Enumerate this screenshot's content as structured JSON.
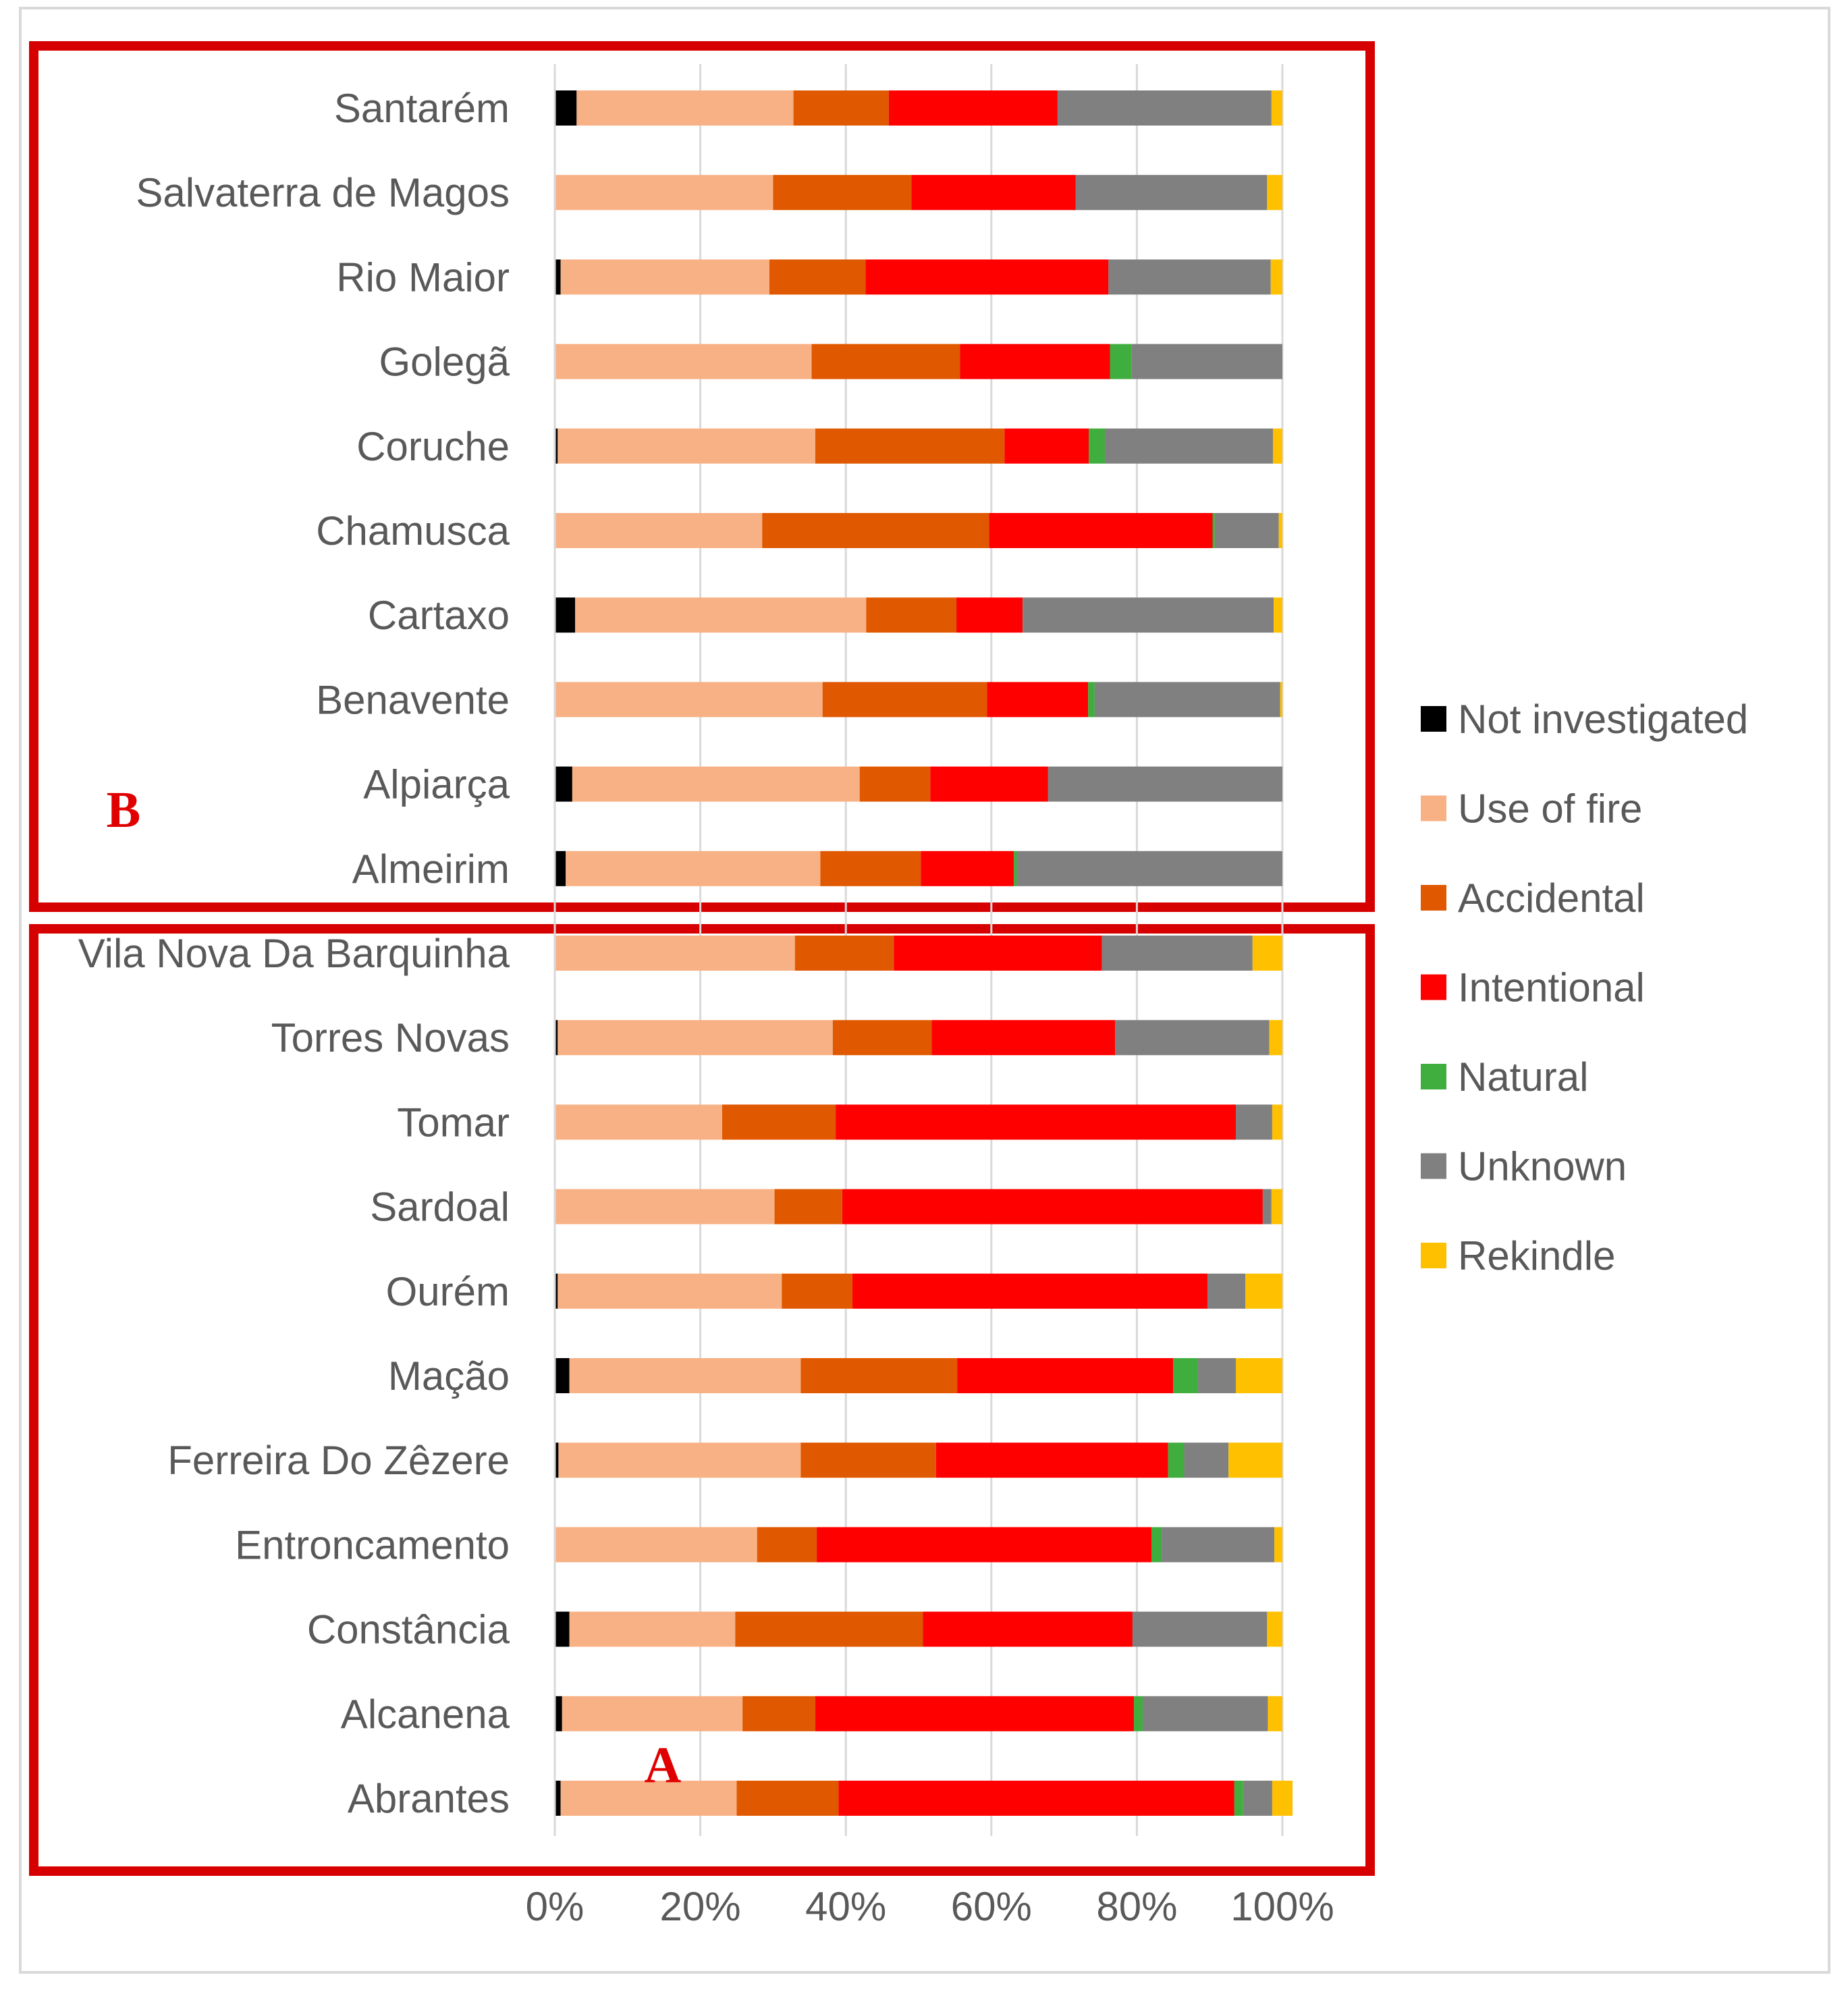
{
  "chart_data": {
    "type": "bar",
    "orientation": "horizontal",
    "stacked": "percent",
    "categories": [
      "Santarém",
      "Salvaterra de Magos",
      "Rio Maior",
      "Golegã",
      "Coruche",
      "Chamusca",
      "Cartaxo",
      "Benavente",
      "Alpiarça",
      "Almeirim",
      "Vila Nova Da Barquinha",
      "Torres Novas",
      "Tomar",
      "Sardoal",
      "Ourém",
      "Mação",
      "Ferreira Do Zêzere",
      "Entroncamento",
      "Constância",
      "Alcanena",
      "Abrantes"
    ],
    "series": [
      {
        "name": "Not investigated",
        "color": "#000000",
        "values": [
          3.0,
          0.0,
          0.8,
          0.0,
          0.4,
          0.0,
          2.8,
          0.0,
          2.4,
          1.5,
          0.0,
          0.4,
          0.0,
          0.0,
          0.4,
          2.0,
          0.5,
          0.0,
          2.0,
          1.0,
          0.8
        ]
      },
      {
        "name": "Use of fire",
        "color": "#f8b185",
        "values": [
          29.8,
          30.0,
          28.7,
          35.3,
          35.4,
          28.5,
          40.0,
          36.8,
          39.5,
          35.0,
          33.0,
          37.8,
          23.0,
          30.2,
          30.8,
          31.8,
          33.3,
          27.8,
          22.8,
          24.8,
          24.2
        ]
      },
      {
        "name": "Accidental",
        "color": "#e05800",
        "values": [
          13.1,
          19.0,
          13.2,
          20.4,
          26.0,
          31.2,
          12.4,
          22.6,
          9.7,
          13.8,
          13.6,
          13.6,
          15.6,
          9.3,
          9.7,
          21.5,
          18.6,
          8.2,
          25.8,
          10.0,
          14.0
        ]
      },
      {
        "name": "Intentional",
        "color": "#ff0000",
        "values": [
          23.2,
          22.6,
          33.4,
          20.6,
          11.6,
          30.7,
          9.1,
          13.9,
          16.2,
          12.8,
          28.6,
          25.2,
          55.0,
          57.8,
          48.8,
          29.7,
          31.9,
          46.0,
          28.8,
          43.8,
          54.4
        ]
      },
      {
        "name": "Natural",
        "color": "#3fae3f",
        "values": [
          0.0,
          0.0,
          0.0,
          3.0,
          2.2,
          0.3,
          0.0,
          0.9,
          0.0,
          0.4,
          0.0,
          0.0,
          0.0,
          0.0,
          0.0,
          3.4,
          2.2,
          1.4,
          0.0,
          1.2,
          1.2
        ]
      },
      {
        "name": "Unknown",
        "color": "#808080",
        "values": [
          29.4,
          26.3,
          22.3,
          20.7,
          23.1,
          8.8,
          34.5,
          25.5,
          32.2,
          36.5,
          20.7,
          21.2,
          5.0,
          1.2,
          5.2,
          5.2,
          6.1,
          15.5,
          18.5,
          17.2,
          4.0
        ]
      },
      {
        "name": "Rekindle",
        "color": "#ffc000",
        "values": [
          1.5,
          2.1,
          1.6,
          0.0,
          1.3,
          0.5,
          1.2,
          0.3,
          0.0,
          0.0,
          4.1,
          1.8,
          1.4,
          1.5,
          5.1,
          6.4,
          7.4,
          1.1,
          2.1,
          2.0,
          2.8
        ]
      }
    ],
    "x_ticks": [
      "0%",
      "20%",
      "40%",
      "60%",
      "80%",
      "100%"
    ],
    "xlim": [
      0,
      100
    ],
    "legend_position": "right",
    "annotations": [
      {
        "text": "B",
        "group": "upper"
      },
      {
        "text": "A",
        "group": "lower"
      }
    ],
    "title": "",
    "xlabel": "",
    "ylabel": ""
  }
}
